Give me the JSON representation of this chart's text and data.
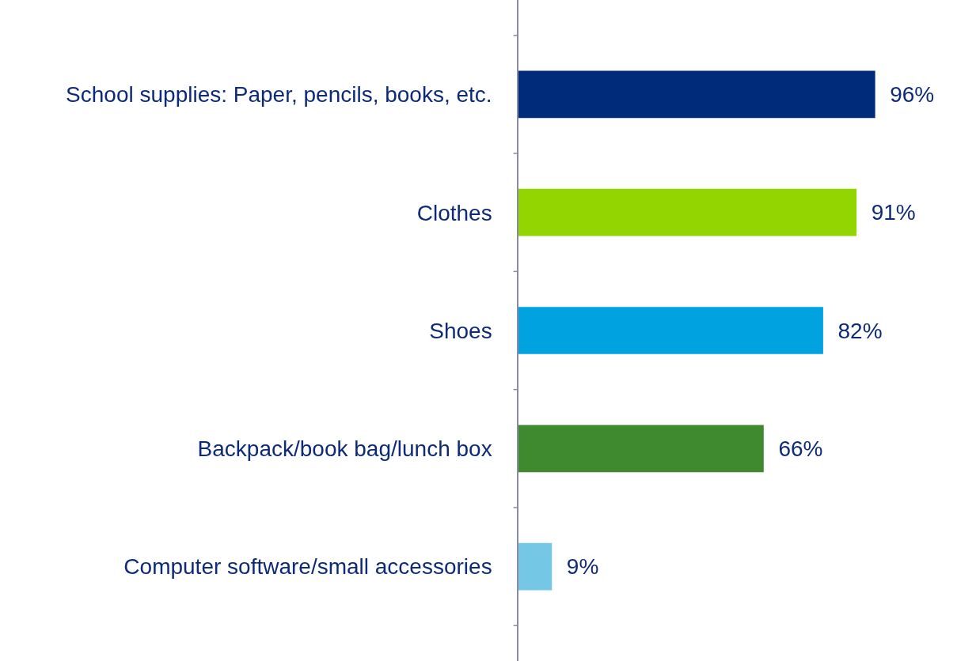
{
  "chart_data": {
    "type": "bar",
    "orientation": "horizontal",
    "categories": [
      "School supplies: Paper, pencils, books, etc.",
      "Clothes",
      "Shoes",
      "Backpack/book bag/lunch box",
      "Computer software/small accessories"
    ],
    "values": [
      96,
      91,
      82,
      66,
      9
    ],
    "colors": [
      "#002a7a",
      "#93d500",
      "#00a3e0",
      "#3f8a2f",
      "#75c7e6"
    ],
    "value_labels": [
      "96%",
      "91%",
      "82%",
      "66%",
      "9%"
    ],
    "legend": false
  }
}
